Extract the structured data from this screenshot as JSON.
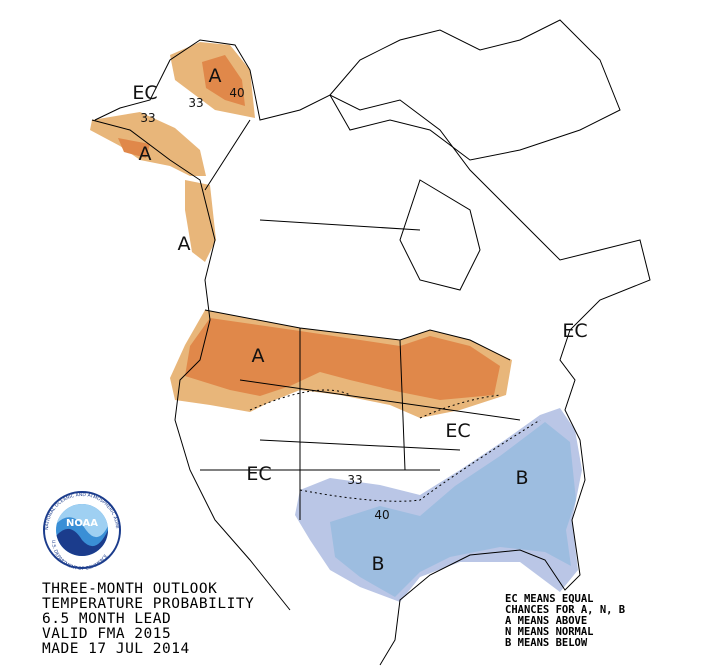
{
  "map_labels": [
    {
      "text": "EC"
    },
    {
      "text": "A"
    },
    {
      "text": "40"
    },
    {
      "text": "33"
    },
    {
      "text": "33"
    },
    {
      "text": "A"
    },
    {
      "text": "A"
    },
    {
      "text": "A"
    },
    {
      "text": "EC"
    },
    {
      "text": "EC"
    },
    {
      "text": "EC"
    },
    {
      "text": "33"
    },
    {
      "text": "40"
    },
    {
      "text": "B"
    },
    {
      "text": "B"
    }
  ],
  "title": [
    "THREE-MONTH OUTLOOK",
    "TEMPERATURE PROBABILITY",
    "6.5 MONTH LEAD",
    "VALID FMA 2015",
    "MADE 17 JUL 2014"
  ],
  "legend": [
    "EC MEANS EQUAL",
    "CHANCES FOR A, N, B",
    "A MEANS ABOVE",
    "N MEANS NORMAL",
    "B MEANS BELOW"
  ],
  "logo": {
    "name": "NOAA",
    "agency": "NATIONAL OCEANIC AND ATMOSPHERIC ADMINISTRATION",
    "department": "U.S. DEPARTMENT OF COMMERCE"
  }
}
